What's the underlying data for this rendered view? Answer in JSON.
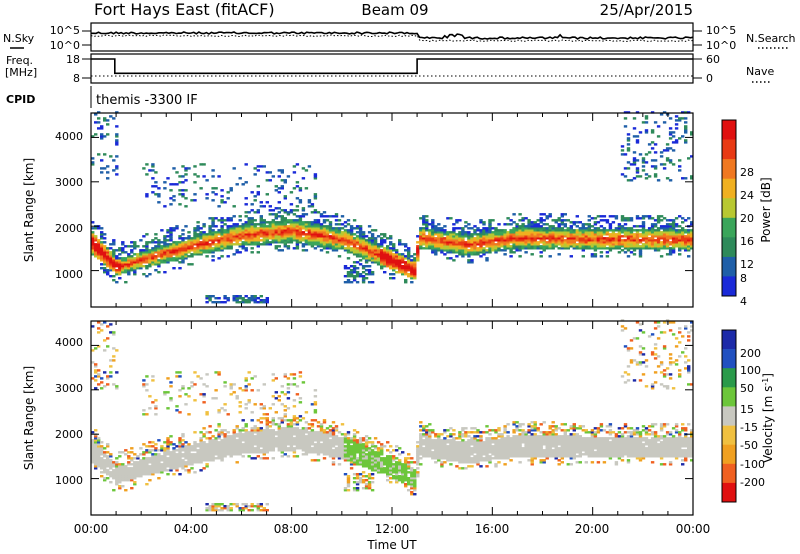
{
  "header": {
    "station": "Fort Hays East (fitACF)",
    "beam": "Beam 09",
    "date": "25/Apr/2015"
  },
  "noise_panel": {
    "left_label": "N.Sky",
    "right_label": "N.Search",
    "left_ticks": [
      "10^5",
      "10^0"
    ],
    "right_ticks": [
      "10^5",
      "10^0"
    ]
  },
  "freq_panel": {
    "left_label_1": "Freq.",
    "left_label_2": "[MHz]",
    "right_label": "Nave",
    "left_ticks": [
      "18",
      "8"
    ],
    "right_ticks": [
      "60",
      "0"
    ]
  },
  "cpid_label": "CPID",
  "cpid_text": "themis -3300 IF",
  "power_panel": {
    "ylabel": "Slant Range [km]",
    "yticks": [
      "1000",
      "2000",
      "3000",
      "4000"
    ],
    "colorbar_label": "Power [dB]",
    "colorbar_ticks": [
      "4",
      "8",
      "12",
      "16",
      "20",
      "24",
      "28"
    ],
    "colors": [
      "#1a2ad8",
      "#1f5fa8",
      "#2e8a5a",
      "#3aa55a",
      "#b8c832",
      "#f0b020",
      "#f07820",
      "#e83a14",
      "#e01010"
    ]
  },
  "velocity_panel": {
    "ylabel": "Slant Range [km]",
    "yticks": [
      "1000",
      "2000",
      "3000",
      "4000"
    ],
    "colorbar_label": "Velocity [m s^-1]",
    "colorbar_ticks": [
      "200",
      "100",
      "50",
      "15",
      "-15",
      "-50",
      "-100",
      "-200"
    ],
    "colors": [
      "#1c2aa8",
      "#2050c0",
      "#2a9a4a",
      "#6cc63a",
      "#c8c8c0",
      "#f0c040",
      "#f0a020",
      "#f06020",
      "#e01010"
    ]
  },
  "x_axis": {
    "ticks": [
      "00:00",
      "04:00",
      "08:00",
      "12:00",
      "16:00",
      "20:00",
      "00:00"
    ],
    "label": "Time UT"
  },
  "chart_data": {
    "type": "heatmap",
    "xlabel": "Time UT",
    "x_range_hours": [
      0,
      24
    ],
    "ylabel": "Slant Range [km]",
    "ylim": [
      180,
      4550
    ],
    "frequency_mhz": [
      {
        "t": 0,
        "v": 18
      },
      {
        "t": 0.95,
        "v": 18
      },
      {
        "t": 0.95,
        "v": 10.5
      },
      {
        "t": 13.0,
        "v": 10.5
      },
      {
        "t": 13.0,
        "v": 18
      },
      {
        "t": 24,
        "v": 18
      }
    ],
    "backscatter_band": [
      {
        "t": 0.0,
        "center_km": 1600,
        "width_km": 260
      },
      {
        "t": 1.0,
        "center_km": 1050,
        "width_km": 180
      },
      {
        "t": 2.0,
        "center_km": 1230,
        "width_km": 200
      },
      {
        "t": 4.0,
        "center_km": 1530,
        "width_km": 230
      },
      {
        "t": 6.0,
        "center_km": 1780,
        "width_km": 250
      },
      {
        "t": 8.0,
        "center_km": 1880,
        "width_km": 260
      },
      {
        "t": 10.0,
        "center_km": 1680,
        "width_km": 250
      },
      {
        "t": 12.0,
        "center_km": 1200,
        "width_km": 230
      },
      {
        "t": 12.9,
        "center_km": 960,
        "width_km": 200
      },
      {
        "t": 13.0,
        "center_km": 1720,
        "width_km": 240
      },
      {
        "t": 15.0,
        "center_km": 1560,
        "width_km": 240
      },
      {
        "t": 17.0,
        "center_km": 1720,
        "width_km": 240
      },
      {
        "t": 20.0,
        "center_km": 1690,
        "width_km": 240
      },
      {
        "t": 24.0,
        "center_km": 1680,
        "width_km": 240
      }
    ],
    "power_db_range": [
      0,
      30
    ],
    "velocity_ms_range": [
      -200,
      200
    ]
  }
}
